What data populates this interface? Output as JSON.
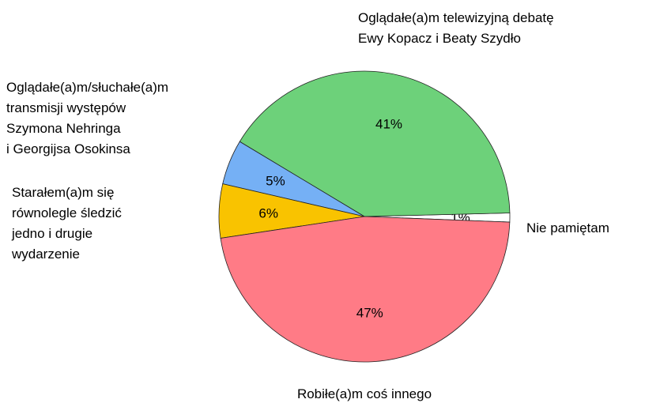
{
  "chart_data": {
    "type": "pie",
    "categories": [
      "Nie pamiętam",
      "Oglądałe(a)m  telewizyjną debatę\nEwy Kopacz i Beaty Szydło",
      "Oglądałe(a)m/słuchałe(a)m\ntransmisji występów\nSzymona Nehringa\ni Georgijsa Osokinsa",
      "Starałem(a)m się\nrównolegle śledzić\njedno i drugie\nwydarzenie",
      "Robiłe(a)m coś innego"
    ],
    "values": [
      1,
      41,
      5,
      6,
      47
    ],
    "value_labels": [
      "1%",
      "41%",
      "5%",
      "6%",
      "47%"
    ],
    "colors": [
      "#ffffff",
      "#6dd17a",
      "#75b0f5",
      "#f9c300",
      "#ff7b86"
    ]
  }
}
